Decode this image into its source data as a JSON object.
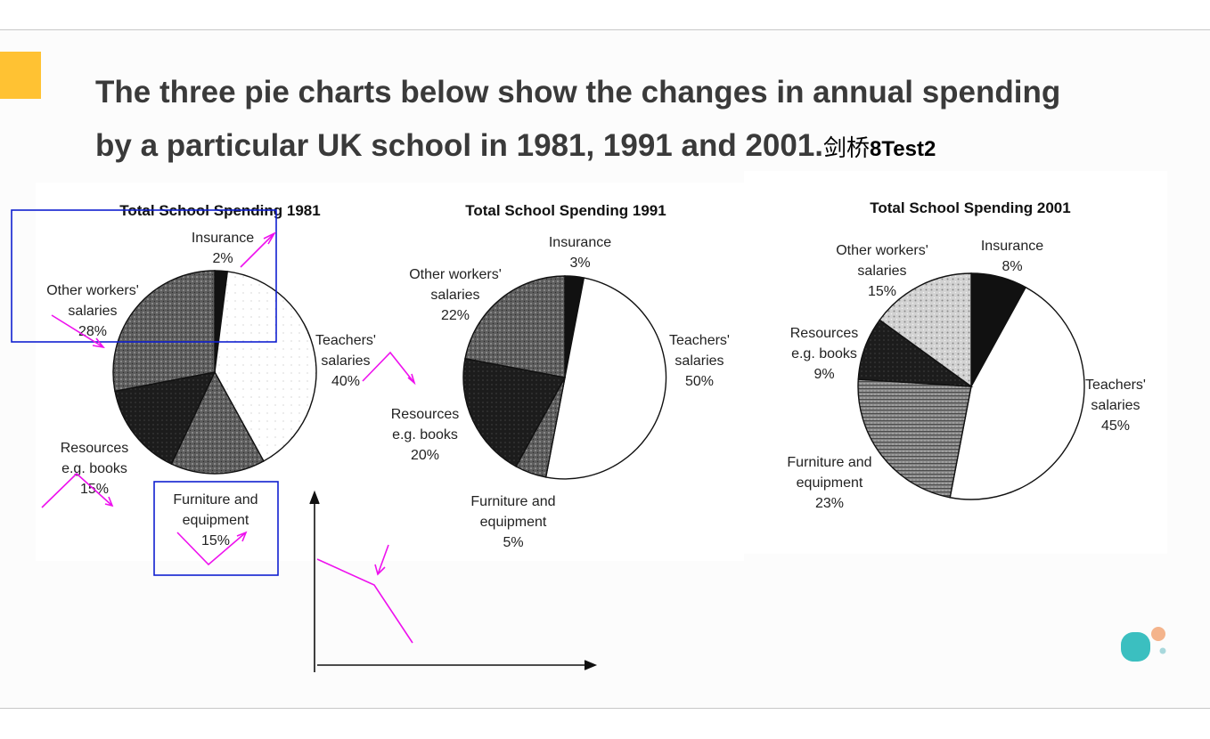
{
  "slide": {
    "title_line1": "The three pie charts below show the changes in annual spending",
    "title_line2": "by a particular UK school in 1981, 1991 and 2001.",
    "title_cn": "剑桥",
    "title_suffix": "8Test2"
  },
  "colors": {
    "accent": "#FFC233",
    "annotation_pen": "#EE11EE",
    "annotation_box": "#1020D0",
    "logo_teal": "#3BBFC0",
    "logo_peach": "#F4B48C",
    "logo_dot": "#A8D8DC"
  },
  "chart_data": [
    {
      "type": "pie",
      "title": "Total School Spending 1981",
      "slices": [
        {
          "label": "Insurance",
          "value": 2,
          "text": "2%"
        },
        {
          "label": "Teachers' salaries",
          "value": 40,
          "text": "40%"
        },
        {
          "label": "Furniture and equipment",
          "value": 15,
          "text": "15%"
        },
        {
          "label": "Resources e.g. books",
          "value": 15,
          "text": "15%"
        },
        {
          "label": "Other workers' salaries",
          "value": 28,
          "text": "28%"
        }
      ]
    },
    {
      "type": "pie",
      "title": "Total School Spending 1991",
      "slices": [
        {
          "label": "Insurance",
          "value": 3,
          "text": "3%"
        },
        {
          "label": "Teachers' salaries",
          "value": 50,
          "text": "50%"
        },
        {
          "label": "Furniture and equipment",
          "value": 5,
          "text": "5%"
        },
        {
          "label": "Resources e.g. books",
          "value": 20,
          "text": "20%"
        },
        {
          "label": "Other workers' salaries",
          "value": 22,
          "text": "22%"
        }
      ]
    },
    {
      "type": "pie",
      "title": "Total School Spending 2001",
      "slices": [
        {
          "label": "Insurance",
          "value": 8,
          "text": "8%"
        },
        {
          "label": "Teachers' salaries",
          "value": 45,
          "text": "45%"
        },
        {
          "label": "Furniture and equipment",
          "value": 23,
          "text": "23%"
        },
        {
          "label": "Resources e.g. books",
          "value": 9,
          "text": "9%"
        },
        {
          "label": "Other workers' salaries",
          "value": 15,
          "text": "15%"
        }
      ]
    }
  ]
}
